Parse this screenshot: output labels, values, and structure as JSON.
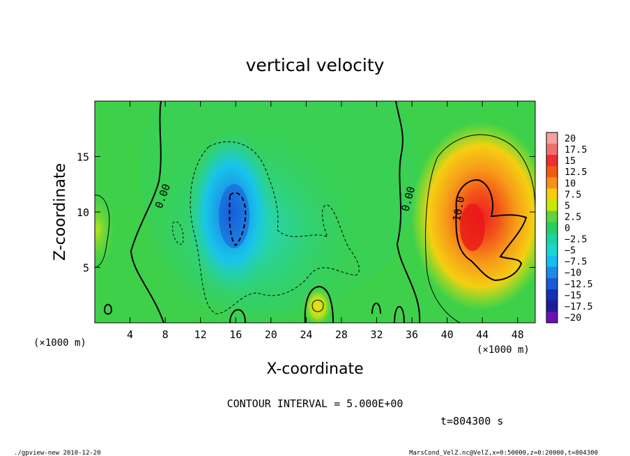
{
  "chart_data": {
    "type": "heatmap",
    "title": "vertical velocity",
    "xlabel": "X-coordinate",
    "ylabel": "Z-coordinate",
    "x_unit_label": "(×1000 m)",
    "x_unit_label_right": "(×1000 m)",
    "xlim": [
      0,
      50
    ],
    "ylim": [
      0,
      20
    ],
    "x_ticks": [
      4,
      8,
      12,
      16,
      20,
      24,
      28,
      32,
      36,
      40,
      44,
      48
    ],
    "y_ticks": [
      5,
      10,
      15
    ],
    "contour_interval_text": "CONTOUR INTERVAL = 5.000E+00",
    "time_text": "t=804300 s",
    "contour_labels": [
      "0.00",
      "0.00",
      "10.0"
    ],
    "colorbar": {
      "levels": [
        "20",
        "17.5",
        "15",
        "12.5",
        "10",
        "7.5",
        "5",
        "2.5",
        "0",
        "−2.5",
        "−5",
        "−7.5",
        "−10",
        "−12.5",
        "−15",
        "−17.5",
        "−20"
      ],
      "colors": [
        "#f4a0a0",
        "#ef6f6f",
        "#ea3030",
        "#f25a10",
        "#f7911a",
        "#f7cc10",
        "#c8e80a",
        "#5fd33c",
        "#28cf5e",
        "#1ed3a0",
        "#18d7d4",
        "#14bef0",
        "#1c8ce8",
        "#1a5ad8",
        "#1232b4",
        "#1c1c96",
        "#6a10b4"
      ]
    },
    "features": [
      {
        "name": "updraft core",
        "x": 43,
        "z": 9,
        "value": 15
      },
      {
        "name": "downdraft core",
        "x": 16,
        "z": 10,
        "value": -10
      }
    ]
  },
  "footer": {
    "left": "./gpview-new  2010-12-20",
    "right": "MarsCond_VelZ.nc@VelZ,x=0:50000,z=0:20000,t=804300"
  }
}
